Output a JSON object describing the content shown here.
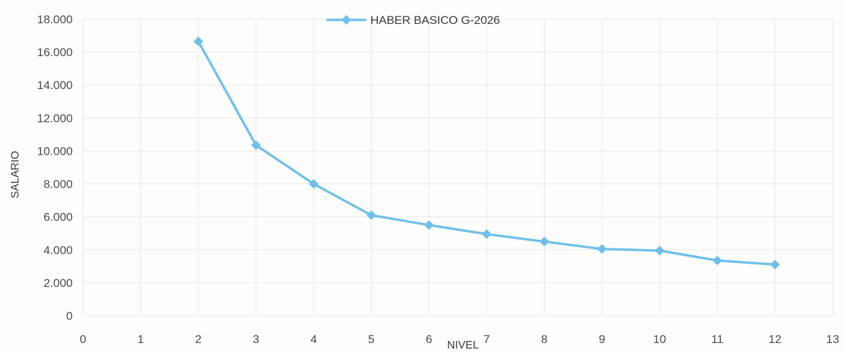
{
  "chart_data": {
    "type": "line",
    "title": "",
    "xlabel": "NIVEL",
    "ylabel": "SALARIO",
    "xlim": [
      0,
      13
    ],
    "ylim": [
      0,
      18000
    ],
    "x_ticks": [
      "0",
      "1",
      "2",
      "3",
      "4",
      "5",
      "6",
      "7",
      "8",
      "9",
      "10",
      "11",
      "12",
      "13"
    ],
    "y_ticks": [
      "0",
      "2.000",
      "4.000",
      "6.000",
      "8.000",
      "10.000",
      "12.000",
      "14.000",
      "16.000",
      "18.000"
    ],
    "grid": true,
    "legend_position": "top-center",
    "series": [
      {
        "name": "HABER BASICO  G-2026",
        "color": "#6ec0ea",
        "marker": "diamond",
        "x": [
          2,
          3,
          4,
          5,
          6,
          7,
          8,
          9,
          10,
          11,
          12
        ],
        "y": [
          16650,
          10350,
          8000,
          6100,
          5500,
          4950,
          4500,
          4050,
          3950,
          3350,
          3100
        ]
      }
    ]
  }
}
